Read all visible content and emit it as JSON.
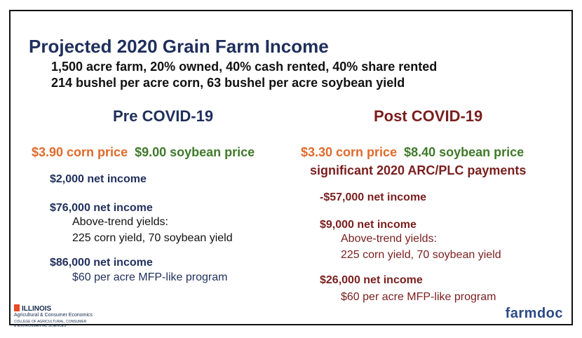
{
  "title": "Projected 2020 Grain Farm Income",
  "subtitle_line1": "1,500 acre farm, 20% owned, 40% cash rented, 40% share rented",
  "subtitle_line2": "214 bushel per acre corn, 63 bushel per acre soybean yield",
  "pre": {
    "heading": "Pre COVID-19",
    "corn_price": "$3.90 corn price",
    "soybean_price": "$9.00 soybean price",
    "income1": "$2,000 net income",
    "income2": "$76,000 net income",
    "yields_label": "Above-trend yields:",
    "yields_detail": "225 corn yield, 70 soybean yield",
    "income3": "$86,000 net income",
    "mfp": "$60  per acre MFP-like program"
  },
  "post": {
    "heading": "Post COVID-19",
    "corn_price": "$3.30 corn price",
    "soybean_price": "$8.40 soybean price",
    "arc_plc": "significant 2020 ARC/PLC payments",
    "income1": "-$57,000 net income",
    "income2": "$9,000 net income",
    "yields_label": "Above-trend yields:",
    "yields_detail": "225 corn yield, 70 soybean yield",
    "income3": "$26,000 net income",
    "mfp": "$60 per acre MFP-like program"
  },
  "logo": {
    "illinois": "ILLINOIS",
    "dept": "Agricultural & Consumer Economics",
    "college_line1": "COLLEGE OF AGRICULTURAL, CONSUMER",
    "college_line2": "& ENVIRONMENTAL SCIENCES",
    "brand": "farmdoc"
  },
  "colors": {
    "navy": "#1f2f5c",
    "maroon": "#7a1e1e",
    "orange": "#e06a2c",
    "green": "#3f7a2a"
  }
}
